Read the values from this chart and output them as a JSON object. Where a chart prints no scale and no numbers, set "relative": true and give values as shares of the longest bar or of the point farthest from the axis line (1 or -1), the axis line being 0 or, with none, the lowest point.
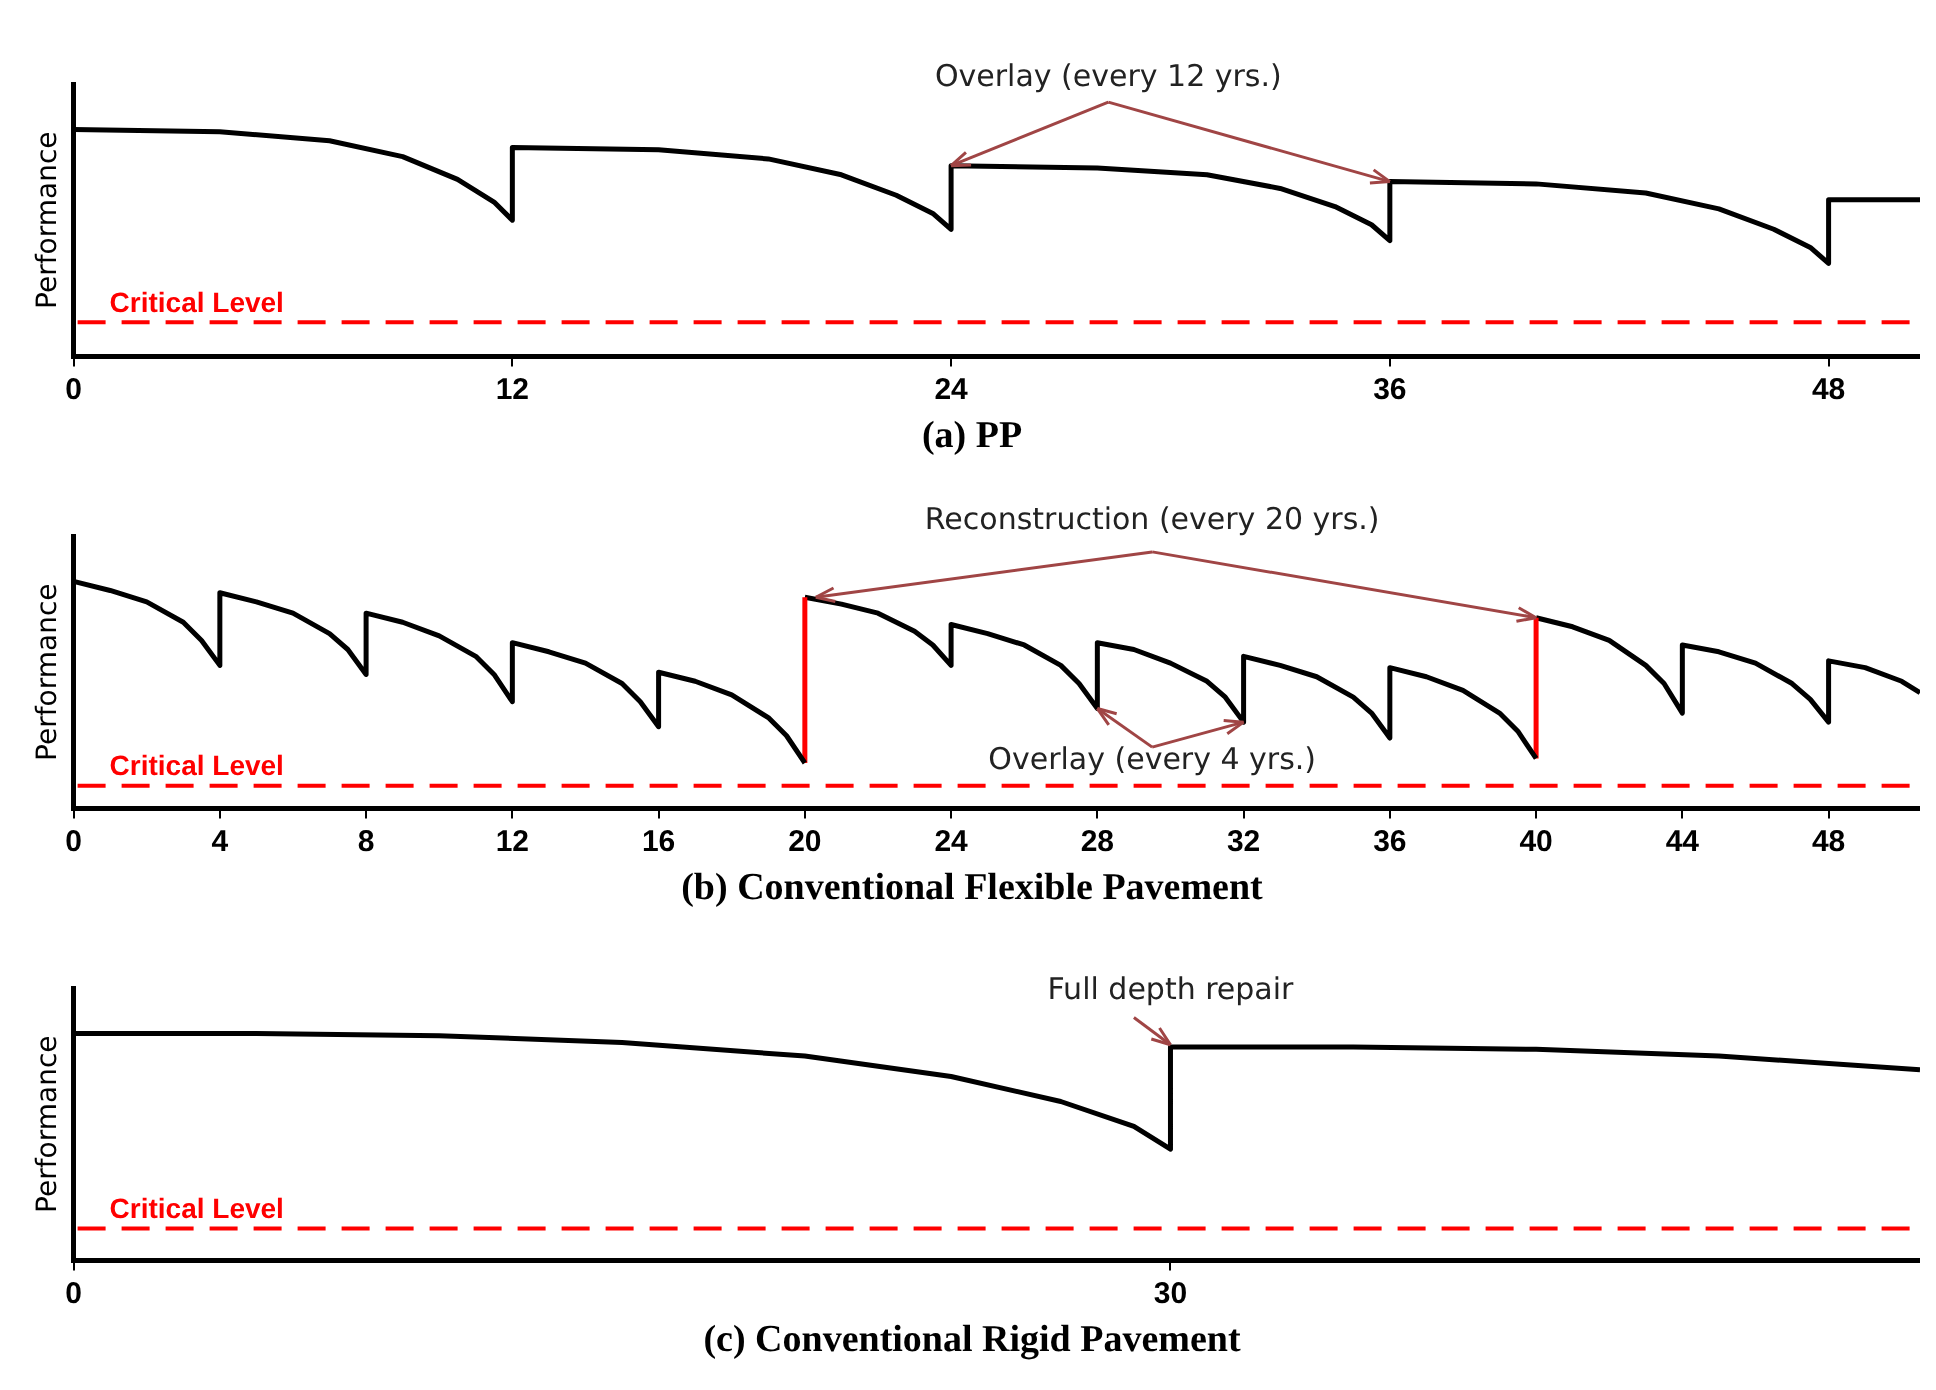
{
  "chart_data": [
    {
      "type": "line",
      "title": "(a) PP",
      "ylabel": "Performance",
      "relative": true,
      "marker": "none",
      "line_style": "solid",
      "grid": false,
      "legend": false,
      "x": [
        0,
        4,
        7,
        9,
        10.5,
        11.5,
        12,
        12,
        16,
        19,
        21,
        22.5,
        23.5,
        24,
        24,
        28,
        31,
        33,
        34.5,
        35.5,
        36,
        36,
        40,
        43,
        45,
        46.5,
        47.5,
        48,
        48,
        50.5
      ],
      "series": [
        {
          "color": "#000000",
          "values": [
            1.0,
            0.99,
            0.95,
            0.88,
            0.78,
            0.68,
            0.6,
            0.92,
            0.91,
            0.87,
            0.8,
            0.71,
            0.63,
            0.56,
            0.84,
            0.83,
            0.8,
            0.74,
            0.66,
            0.58,
            0.51,
            0.77,
            0.76,
            0.72,
            0.65,
            0.56,
            0.48,
            0.41,
            0.69,
            0.69
          ]
        }
      ],
      "xlim": [
        0,
        50.5
      ],
      "xticks": [
        0,
        12,
        24,
        36,
        48
      ],
      "ref_lines": [
        {
          "axis": "y",
          "value": 0.15,
          "label": "Critical Level",
          "color": "#ff0000",
          "line_style": "dashed"
        }
      ],
      "annotations": [
        "Overlay (every 12 yrs.)"
      ]
    },
    {
      "type": "line",
      "title": "(b) Conventional Flexible Pavement",
      "ylabel": "Performance",
      "relative": true,
      "marker": "none",
      "line_style": "solid",
      "grid": false,
      "legend": false,
      "series": [
        {
          "color": "#000000",
          "x": [
            0,
            1,
            2,
            3,
            3.5,
            4,
            4,
            5,
            6,
            7,
            7.5,
            8,
            8,
            9,
            10,
            11,
            11.5,
            12,
            12,
            13,
            14,
            15,
            15.5,
            16,
            16,
            17,
            18,
            19,
            19.5,
            20
          ],
          "values": [
            1.0,
            0.96,
            0.91,
            0.82,
            0.74,
            0.63,
            0.95,
            0.91,
            0.86,
            0.77,
            0.7,
            0.59,
            0.86,
            0.82,
            0.76,
            0.67,
            0.59,
            0.47,
            0.73,
            0.69,
            0.64,
            0.55,
            0.47,
            0.36,
            0.6,
            0.56,
            0.5,
            0.4,
            0.32,
            0.2
          ]
        },
        {
          "color": "#ff0000",
          "x": [
            20,
            20
          ],
          "values": [
            0.2,
            0.93
          ]
        },
        {
          "color": "#000000",
          "x": [
            20,
            21,
            22,
            23,
            23.5,
            24,
            24,
            25,
            26,
            27,
            27.5,
            28,
            28,
            29,
            30,
            31,
            31.5,
            32,
            32,
            33,
            34,
            35,
            35.5,
            36,
            36,
            37,
            38,
            39,
            39.5,
            40
          ],
          "values": [
            0.93,
            0.9,
            0.86,
            0.78,
            0.72,
            0.63,
            0.81,
            0.77,
            0.72,
            0.63,
            0.55,
            0.44,
            0.73,
            0.7,
            0.64,
            0.56,
            0.49,
            0.38,
            0.67,
            0.63,
            0.58,
            0.49,
            0.42,
            0.31,
            0.62,
            0.58,
            0.52,
            0.42,
            0.34,
            0.22
          ]
        },
        {
          "color": "#ff0000",
          "x": [
            40,
            40
          ],
          "values": [
            0.22,
            0.84
          ]
        },
        {
          "color": "#000000",
          "x": [
            40,
            41,
            42,
            43,
            43.5,
            44,
            44,
            45,
            46,
            47,
            47.5,
            48,
            48,
            49,
            50,
            50.5
          ],
          "values": [
            0.84,
            0.8,
            0.74,
            0.63,
            0.55,
            0.42,
            0.72,
            0.69,
            0.64,
            0.55,
            0.48,
            0.38,
            0.65,
            0.62,
            0.56,
            0.51
          ]
        }
      ],
      "xlim": [
        0,
        50.5
      ],
      "xticks": [
        0,
        4,
        8,
        12,
        16,
        20,
        24,
        28,
        32,
        36,
        40,
        44,
        48
      ],
      "ref_lines": [
        {
          "axis": "y",
          "value": 0.1,
          "label": "Critical Level",
          "color": "#ff0000",
          "line_style": "dashed"
        }
      ],
      "annotations": [
        "Reconstruction (every 20 yrs.)",
        "Overlay (every 4 yrs.)"
      ]
    },
    {
      "type": "line",
      "title": "(c) Conventional Rigid Pavement",
      "ylabel": "Performance",
      "relative": true,
      "marker": "none",
      "line_style": "solid",
      "grid": false,
      "legend": false,
      "x": [
        0,
        5,
        10,
        15,
        20,
        24,
        27,
        29,
        30,
        30,
        35,
        40,
        45,
        50.5
      ],
      "series": [
        {
          "color": "#000000",
          "values": [
            1.0,
            1.0,
            0.99,
            0.96,
            0.9,
            0.81,
            0.7,
            0.59,
            0.49,
            0.94,
            0.94,
            0.93,
            0.9,
            0.84
          ]
        }
      ],
      "xlim": [
        0,
        50.5
      ],
      "xticks": [
        0,
        30
      ],
      "ref_lines": [
        {
          "axis": "y",
          "value": 0.14,
          "label": "Critical Level",
          "color": "#ff0000",
          "line_style": "dashed"
        }
      ],
      "annotations": [
        "Full depth repair"
      ]
    }
  ]
}
